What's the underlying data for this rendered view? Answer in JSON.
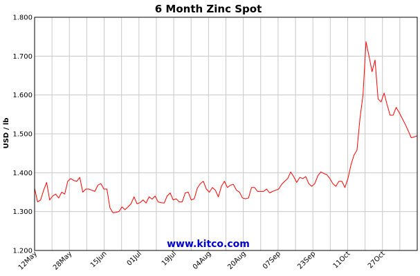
{
  "chart_data": {
    "type": "line",
    "title": "6 Month Zinc Spot",
    "ylabel": "USD / lb",
    "xlabel": "",
    "ylim": [
      1.2,
      1.8
    ],
    "yticks": [
      "1.200",
      "1.300",
      "1.400",
      "1.500",
      "1.600",
      "1.700",
      "1.800"
    ],
    "xticks": [
      "12May",
      "28May",
      "15Jun",
      "01Jul",
      "19Jul",
      "04Aug",
      "20Aug",
      "07Sep",
      "23Sep",
      "11Oct",
      "27Oct"
    ],
    "grid": true,
    "legend": "none",
    "series": [
      {
        "color": "#ff0000",
        "values": [
          1.36,
          1.325,
          1.33,
          1.355,
          1.375,
          1.33,
          1.34,
          1.345,
          1.335,
          1.35,
          1.345,
          1.378,
          1.385,
          1.38,
          1.378,
          1.388,
          1.35,
          1.358,
          1.358,
          1.355,
          1.352,
          1.368,
          1.372,
          1.358,
          1.358,
          1.31,
          1.297,
          1.298,
          1.3,
          1.312,
          1.305,
          1.312,
          1.32,
          1.338,
          1.32,
          1.323,
          1.33,
          1.322,
          1.338,
          1.332,
          1.34,
          1.325,
          1.323,
          1.322,
          1.34,
          1.348,
          1.33,
          1.333,
          1.325,
          1.325,
          1.348,
          1.35,
          1.33,
          1.333,
          1.36,
          1.372,
          1.378,
          1.358,
          1.35,
          1.362,
          1.355,
          1.338,
          1.365,
          1.378,
          1.362,
          1.368,
          1.37,
          1.355,
          1.35,
          1.335,
          1.333,
          1.335,
          1.362,
          1.362,
          1.352,
          1.352,
          1.352,
          1.358,
          1.348,
          1.352,
          1.355,
          1.358,
          1.37,
          1.378,
          1.385,
          1.402,
          1.39,
          1.375,
          1.388,
          1.385,
          1.39,
          1.372,
          1.365,
          1.372,
          1.392,
          1.402,
          1.398,
          1.395,
          1.385,
          1.372,
          1.365,
          1.378,
          1.378,
          1.362,
          1.385,
          1.42,
          1.445,
          1.458,
          1.54,
          1.6,
          1.737,
          1.7,
          1.66,
          1.69,
          1.59,
          1.582,
          1.605,
          1.575,
          1.548,
          1.548,
          1.568,
          1.555,
          1.54,
          1.525,
          1.508,
          1.49,
          1.492,
          1.495
        ]
      }
    ]
  },
  "watermark": "www.kitco.com"
}
